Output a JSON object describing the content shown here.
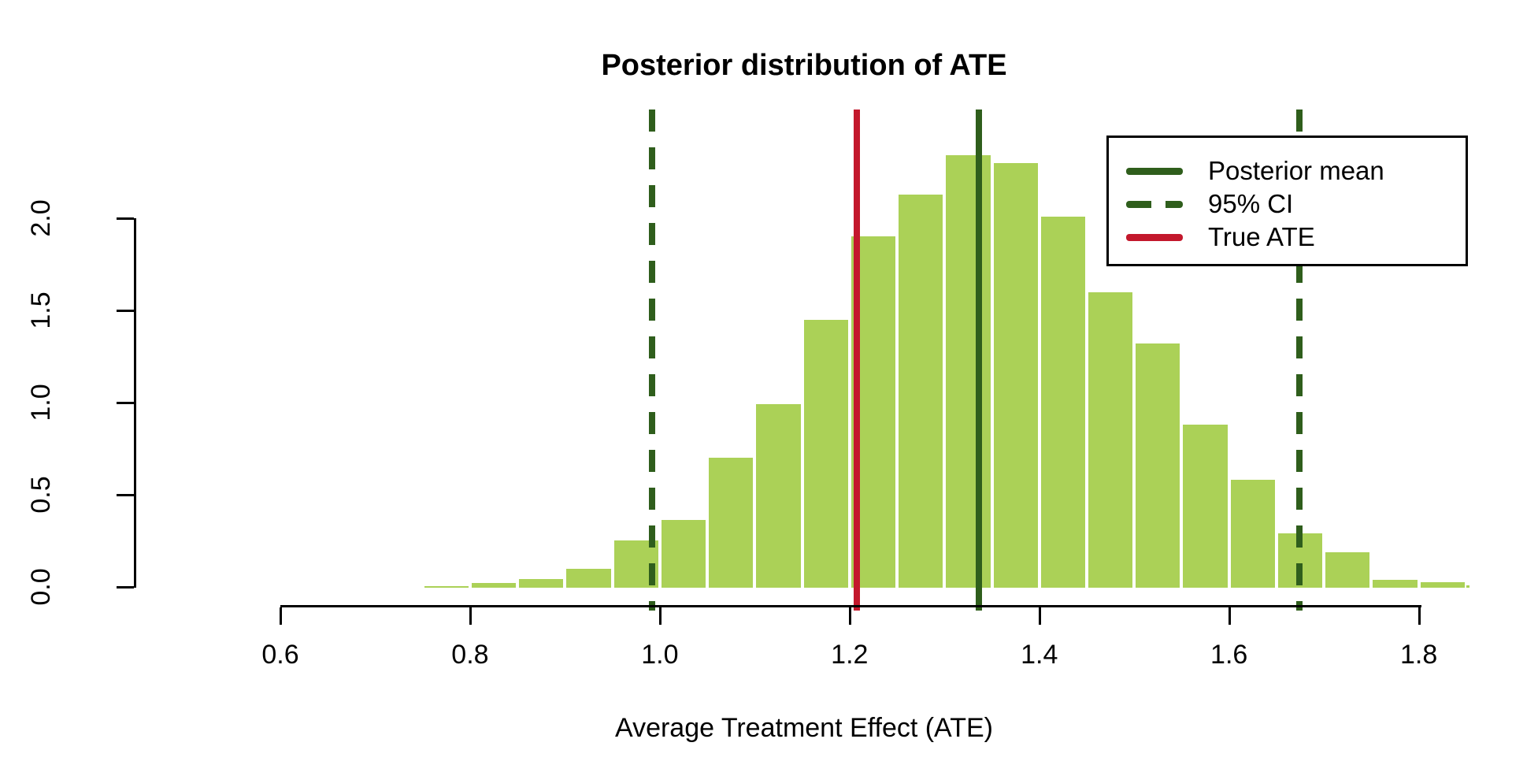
{
  "title": "Posterior distribution of ATE",
  "x_axis": {
    "label": "Average Treatment Effect (ATE)",
    "tick_labels": [
      "0.6",
      "0.8",
      "1.0",
      "1.2",
      "1.4",
      "1.6",
      "1.8"
    ]
  },
  "y_axis": {
    "tick_labels": [
      "0.0",
      "0.5",
      "1.0",
      "1.5",
      "2.0"
    ]
  },
  "legend": {
    "entries": [
      {
        "label": "Posterior mean",
        "style": "solid-green"
      },
      {
        "label": "95% CI",
        "style": "dashed-green"
      },
      {
        "label": "True ATE",
        "style": "solid-red"
      }
    ]
  },
  "colors": {
    "bar_fill": "#ABD157",
    "bar_border": "#FFFFFF",
    "dark_green": "#2F5E1C",
    "red": "#C3182C",
    "axis": "#000000"
  },
  "chart_data": {
    "type": "bar",
    "subtype": "histogram",
    "title": "Posterior distribution of ATE",
    "xlabel": "Average Treatment Effect (ATE)",
    "ylabel": "",
    "x_ticks": [
      0.6,
      0.8,
      1.0,
      1.2,
      1.4,
      1.6,
      1.8
    ],
    "y_ticks": [
      0.0,
      0.5,
      1.0,
      1.5,
      2.0
    ],
    "xlim": [
      0.52,
      1.86
    ],
    "ylim": [
      -0.12,
      2.59
    ],
    "grid": false,
    "legend_position": "top-right",
    "bin_start": 0.7,
    "bin_width": 0.05,
    "densities": [
      0.007,
      0.013,
      0.03,
      0.052,
      0.108,
      0.26,
      0.375,
      0.71,
      1.0,
      1.46,
      1.91,
      2.14,
      2.35,
      2.31,
      2.02,
      1.61,
      1.33,
      0.89,
      0.59,
      0.3,
      0.2,
      0.05,
      0.037,
      0.01
    ],
    "lines": {
      "posterior_mean": 1.336,
      "ci_95_lower": 0.992,
      "ci_95_upper": 1.674,
      "true_ate": 1.208
    }
  }
}
